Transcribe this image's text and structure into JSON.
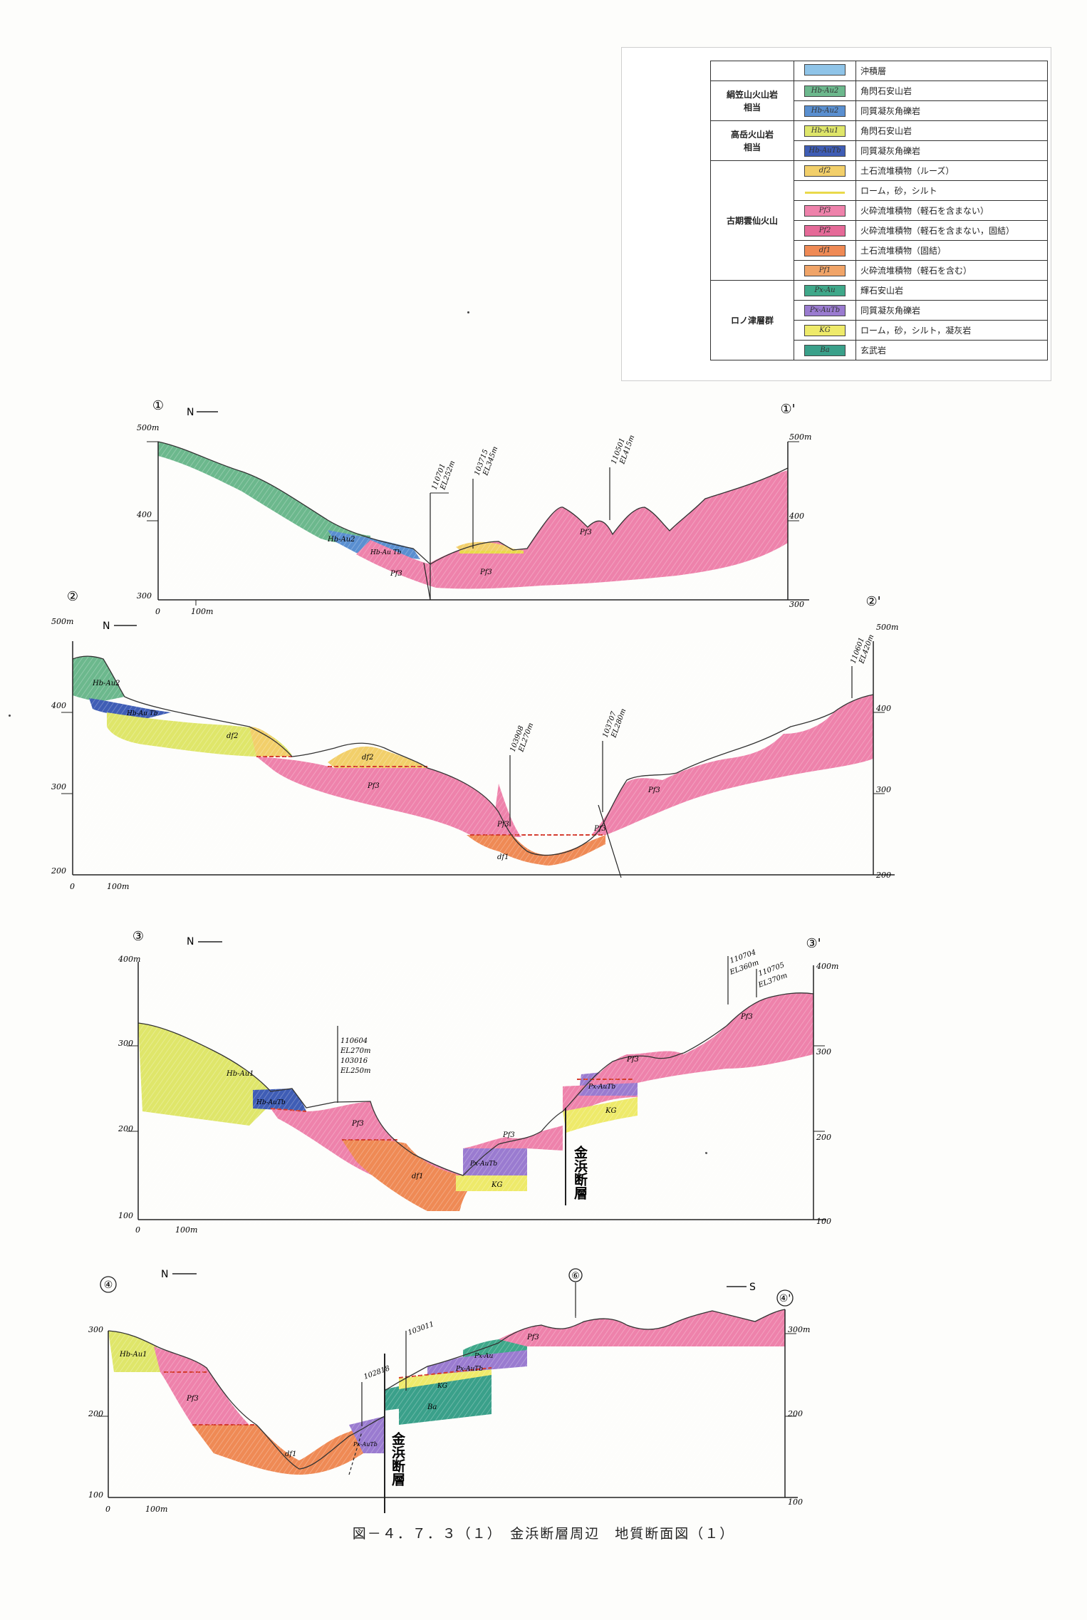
{
  "legend": {
    "groups": [
      {
        "name": "",
        "rows": [
          {
            "code": "",
            "color": "#8fc4e8",
            "name": "沖積層"
          }
        ]
      },
      {
        "name": "絹笠山火山岩\n相当",
        "rows": [
          {
            "code": "Hb-Au2",
            "color": "#6cb88d",
            "name": "角閃石安山岩"
          },
          {
            "code": "Hb-Au2",
            "color": "#5a8fd0",
            "name": "同質凝灰角礫岩"
          }
        ]
      },
      {
        "name": "高岳火山岩\n相当",
        "rows": [
          {
            "code": "Hb-Au1",
            "color": "#dfe66a",
            "name": "角閃石安山岩"
          },
          {
            "code": "Hb-AuTb",
            "color": "#3f5db5",
            "name": "同質凝灰角礫岩"
          }
        ]
      },
      {
        "name": "古期雲仙火山",
        "rows": [
          {
            "code": "df2",
            "color": "#f2cf6a",
            "name": "土石流堆積物（ルーズ）"
          },
          {
            "code": "",
            "color": "#e9d94a",
            "name": "ローム，砂，シルト",
            "line": true
          },
          {
            "code": "Pf3",
            "color": "#ee82ab",
            "name": "火砕流堆積物（軽石を含まない）"
          },
          {
            "code": "Pf2",
            "color": "#e56a98",
            "name": "火砕流堆積物（軽石を含まない，固結）"
          },
          {
            "code": "df1",
            "color": "#ef8a55",
            "name": "土石流堆積物（固結）"
          },
          {
            "code": "Pf1",
            "color": "#f0a468",
            "name": "火砕流堆積物（軽石を含む）"
          }
        ]
      },
      {
        "name": "ロノ津層群",
        "rows": [
          {
            "code": "Px-Au",
            "color": "#3fa88a",
            "name": "輝石安山岩"
          },
          {
            "code": "Px-AuTb",
            "color": "#9a7bd0",
            "name": "同質凝灰角礫岩"
          },
          {
            "code": "KG",
            "color": "#eeea6a",
            "name": "ローム，砂，シルト，凝灰岩"
          },
          {
            "code": "Ba",
            "color": "#3aa08a",
            "name": "玄武岩"
          }
        ]
      }
    ]
  },
  "sections": {
    "s1": {
      "start": "①",
      "end": "①'",
      "north": "N",
      "top": "500m",
      "mid": "400",
      "bottom": "300",
      "top_r": "500m",
      "mid_r": "400",
      "bottom_r": "300",
      "x0": "0",
      "x1": "100m",
      "bores": [
        {
          "id": "110701",
          "el": "EL252m"
        },
        {
          "id": "103715",
          "el": "EL345m"
        },
        {
          "id": "110501",
          "el": "EL415m"
        }
      ],
      "units": [
        "Hb-Au2",
        "Hb-Au Tb",
        "Pf3",
        "Pf3",
        "Pf3"
      ]
    },
    "s2": {
      "start": "②",
      "end": "②'",
      "north": "N",
      "top": "500m",
      "y400": "400",
      "y300": "300",
      "bottom": "200",
      "top_r": "500m",
      "y400_r": "400",
      "y300_r": "300",
      "bottom_r": "200",
      "x0": "0",
      "x1": "100m",
      "bores": [
        {
          "id": "103908",
          "el": "EL270m"
        },
        {
          "id": "103707",
          "el": "EL280m"
        },
        {
          "id": "110601",
          "el": "EL420m"
        }
      ],
      "units": [
        "Hb-Au2",
        "Hb-Au Tb",
        "df2",
        "df2",
        "Pf3",
        "Pf3",
        "Pf3",
        "Pf3",
        "df1"
      ]
    },
    "s3": {
      "start": "③",
      "end": "③'",
      "north": "N",
      "top": "400m",
      "y300": "300",
      "y200": "200",
      "bottom": "100",
      "top_r": "400m",
      "y300_r": "300",
      "y200_r": "200",
      "bottom_r": "100",
      "x0": "0",
      "x1": "100m",
      "bores": [
        {
          "id": "110604",
          "el": "EL270m"
        },
        {
          "id": "103016",
          "el": "EL250m"
        },
        {
          "id": "110704",
          "el": "EL360m"
        },
        {
          "id": "110705",
          "el": "EL370m"
        }
      ],
      "units": [
        "Hb-Au1",
        "Hb-AuTb",
        "Pf3",
        "df1",
        "Px-AuTb",
        "KG",
        "Pf3",
        "Px-AuTb",
        "KG",
        "Pf3",
        "Pf3"
      ],
      "fault": "金浜断層"
    },
    "s4": {
      "start": "④",
      "end": "④'",
      "mid_marker": "⑥",
      "north": "N",
      "south": "S",
      "top": "300",
      "y200": "200",
      "bottom": "100",
      "top_r": "300m",
      "y200_r": "200",
      "bottom_r": "100",
      "x0": "0",
      "x1": "100m",
      "bores": [
        {
          "id": "102818",
          "el": ""
        },
        {
          "id": "103011",
          "el": ""
        }
      ],
      "units": [
        "Hb-Au1",
        "Pf3",
        "df1",
        "Px-AuTb",
        "Px-Au",
        "Px-AuTb",
        "KG",
        "Ba",
        "Pf3"
      ],
      "fault": "金浜断層"
    }
  },
  "caption": "図－４．７．３（１）　金浜断層周辺　地質断面図（１）"
}
